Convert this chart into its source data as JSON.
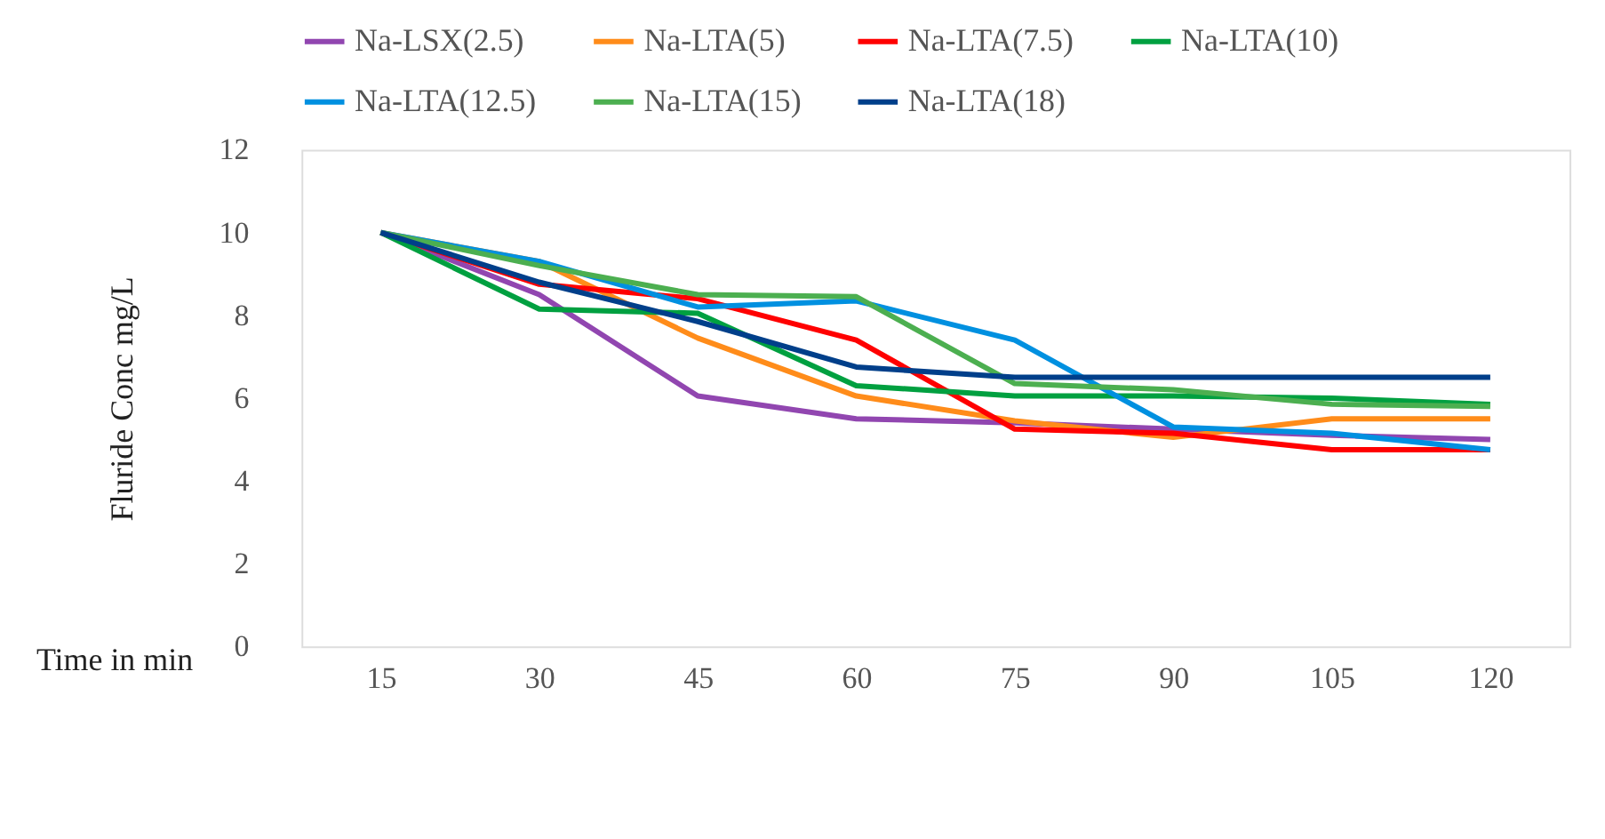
{
  "chart_data": {
    "type": "line",
    "xlabel": "Time in min",
    "ylabel": "Fluride Conc mg/L",
    "categories": [
      "15",
      "30",
      "45",
      "60",
      "75",
      "90",
      "105",
      "120"
    ],
    "series": [
      {
        "name": "Na-LSX(2.5)",
        "color": "#9146b0",
        "values": [
          10,
          8.5,
          6.05,
          5.5,
          5.4,
          5.25,
          5.1,
          5.0
        ]
      },
      {
        "name": "Na-LTA(5)",
        "color": "#ff8c1a",
        "values": [
          10,
          9.3,
          7.45,
          6.05,
          5.45,
          5.05,
          5.5,
          5.5
        ]
      },
      {
        "name": "Na-LTA(7.5)",
        "color": "#ff0000",
        "values": [
          10,
          8.75,
          8.4,
          7.4,
          5.25,
          5.15,
          4.75,
          4.75
        ]
      },
      {
        "name": "Na-LTA(10)",
        "color": "#00a040",
        "values": [
          10,
          8.15,
          8.05,
          6.3,
          6.05,
          6.05,
          6.0,
          5.85
        ]
      },
      {
        "name": "Na-LTA(12.5)",
        "color": "#0090e0",
        "values": [
          10,
          9.3,
          8.2,
          8.35,
          7.4,
          5.3,
          5.15,
          4.75
        ]
      },
      {
        "name": "Na-LTA(15)",
        "color": "#4caf50",
        "values": [
          10,
          9.2,
          8.5,
          8.45,
          6.35,
          6.2,
          5.85,
          5.8
        ]
      },
      {
        "name": "Na-LTA(18)",
        "color": "#003f8a",
        "values": [
          10,
          8.8,
          7.85,
          6.75,
          6.5,
          6.5,
          6.5,
          6.5
        ]
      }
    ],
    "ylim": [
      0,
      12
    ],
    "yticks": [
      0,
      2,
      4,
      6,
      8,
      10,
      12
    ],
    "grid": false,
    "legend": "top",
    "line_style": "solid",
    "marker": "none"
  }
}
